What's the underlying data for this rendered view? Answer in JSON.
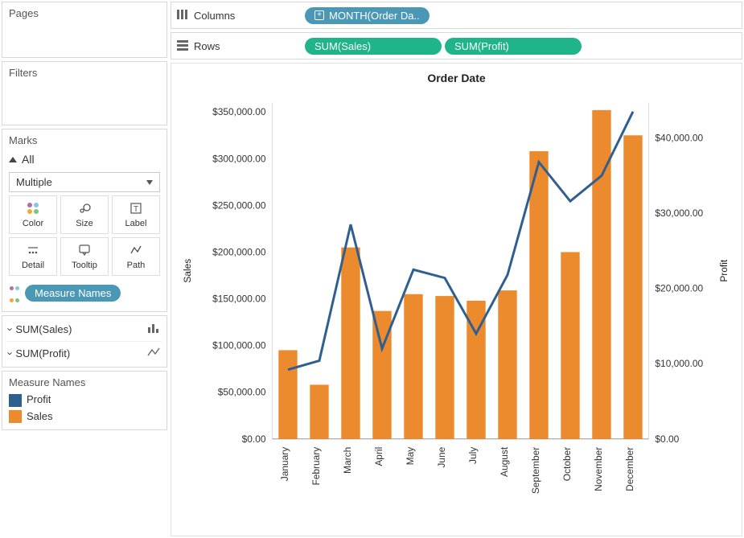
{
  "sidebar": {
    "pages_title": "Pages",
    "filters_title": "Filters",
    "marks_title": "Marks",
    "marks_all": "All",
    "marks_dropdown": "Multiple",
    "mark_buttons": [
      {
        "label": "Color"
      },
      {
        "label": "Size"
      },
      {
        "label": "Label"
      },
      {
        "label": "Detail"
      },
      {
        "label": "Tooltip"
      },
      {
        "label": "Path"
      }
    ],
    "measure_names_pill": "Measure Names",
    "measures": [
      {
        "label": "SUM(Sales)",
        "icon": "bar"
      },
      {
        "label": "SUM(Profit)",
        "icon": "line"
      }
    ],
    "legend_title": "Measure Names",
    "legend_items": [
      {
        "label": "Profit",
        "color": "#2f5f8f"
      },
      {
        "label": "Sales",
        "color": "#ec8b2d"
      }
    ]
  },
  "shelves": {
    "columns_label": "Columns",
    "rows_label": "Rows",
    "columns_pill": "MONTH(Order Da..",
    "rows_pills": [
      "SUM(Sales)",
      "SUM(Profit)"
    ]
  },
  "chart": {
    "title": "Order Date",
    "type": "dual-axis-bar-line",
    "categories": [
      "January",
      "February",
      "March",
      "April",
      "May",
      "June",
      "July",
      "August",
      "September",
      "October",
      "November",
      "December"
    ],
    "bar_series": {
      "name": "Sales",
      "color": "#ec8b2d",
      "values": [
        95000,
        58000,
        205000,
        137000,
        155000,
        153000,
        148000,
        159000,
        308000,
        200000,
        352000,
        325000
      ]
    },
    "line_series": {
      "name": "Profit",
      "color": "#2f5f8f",
      "stroke_width": 3,
      "values": [
        9200,
        10400,
        28500,
        12000,
        22500,
        21400,
        14000,
        21800,
        36800,
        31600,
        35000,
        43500
      ]
    },
    "left_axis": {
      "label": "Sales",
      "min": 0,
      "max": 360000,
      "ticks": [
        0,
        50000,
        100000,
        150000,
        200000,
        250000,
        300000,
        350000
      ],
      "tick_labels": [
        "$0.00",
        "$50,000.00",
        "$100,000.00",
        "$150,000.00",
        "$200,000.00",
        "$250,000.00",
        "$300,000.00",
        "$350,000.00"
      ]
    },
    "right_axis": {
      "label": "Profit",
      "min": 0,
      "max": 44700,
      "ticks": [
        0,
        10000,
        20000,
        30000,
        40000
      ],
      "tick_labels": [
        "$0.00",
        "$10,000.00",
        "$20,000.00",
        "$30,000.00",
        "$40,000.00"
      ]
    },
    "grid_color": "#d9d9d9",
    "background_color": "#ffffff",
    "bar_width_ratio": 0.6
  }
}
